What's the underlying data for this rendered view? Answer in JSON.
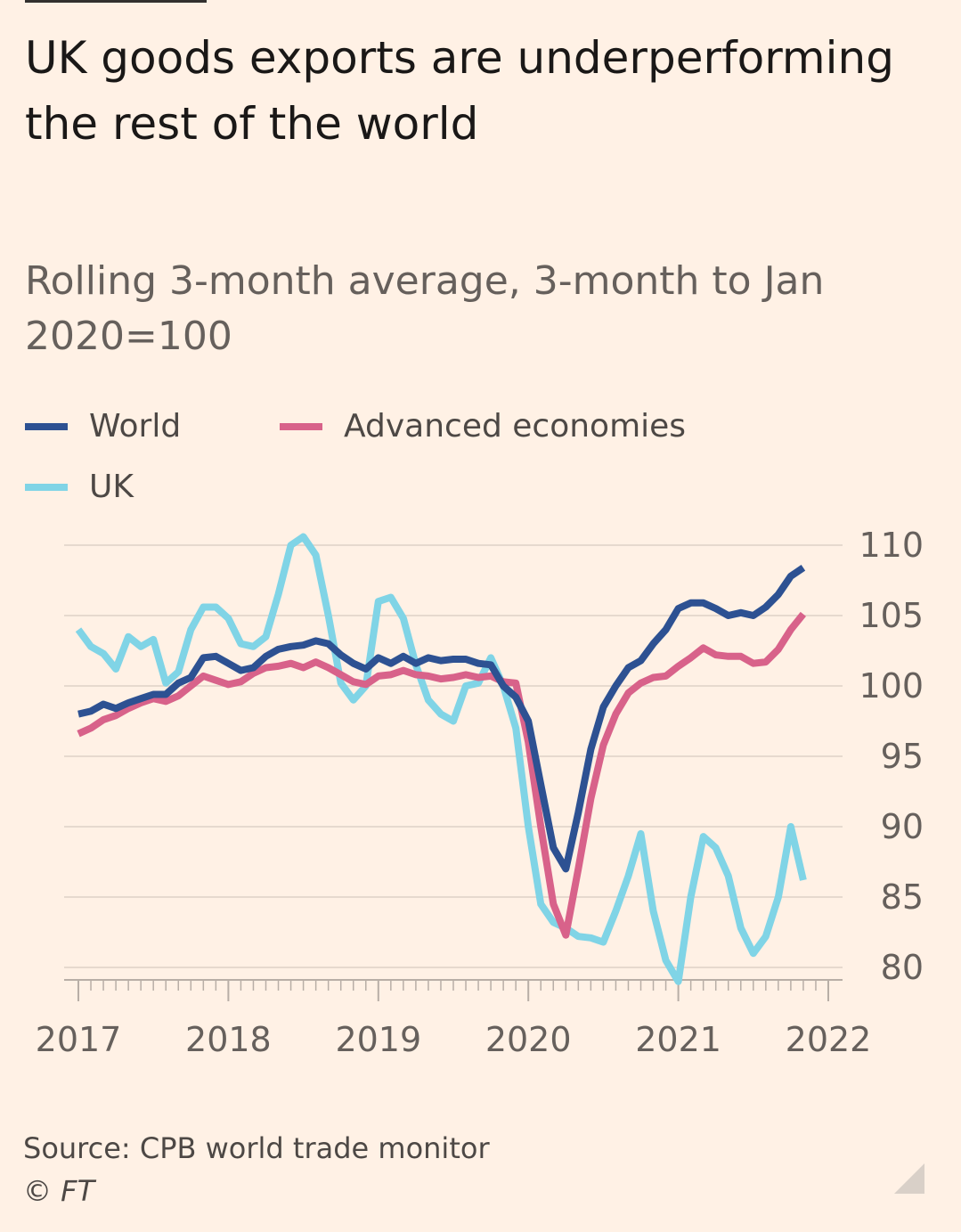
{
  "title": "UK goods exports are underperforming the rest of the world",
  "subtitle": "Rolling 3-month average, 3-month to Jan 2020=100",
  "legend": [
    {
      "label": "World",
      "color": "#2D5192"
    },
    {
      "label": "Advanced economies",
      "color": "#D8628A"
    },
    {
      "label": "UK",
      "color": "#80D4E6"
    }
  ],
  "source": "Source: CPB world trade monitor",
  "credit": "© FT",
  "chart_data": {
    "type": "line",
    "title": "UK goods exports are underperforming the rest of the world",
    "subtitle": "Rolling 3-month average, 3-month to Jan 2020=100",
    "xlabel": "",
    "ylabel": "",
    "ylim": [
      79,
      110
    ],
    "yticks": [
      80,
      85,
      90,
      95,
      100,
      105,
      110
    ],
    "xlim": [
      2017,
      2022
    ],
    "xticks": [
      "2017",
      "2018",
      "2019",
      "2020",
      "2021",
      "2022"
    ],
    "axis_side": "right",
    "grid": true,
    "series": [
      {
        "name": "World",
        "color": "#2D5192",
        "x": [
          2017.0,
          2017.083,
          2017.167,
          2017.25,
          2017.333,
          2017.417,
          2017.5,
          2017.583,
          2017.667,
          2017.75,
          2017.833,
          2017.917,
          2018.0,
          2018.083,
          2018.167,
          2018.25,
          2018.333,
          2018.417,
          2018.5,
          2018.583,
          2018.667,
          2018.75,
          2018.833,
          2018.917,
          2019.0,
          2019.083,
          2019.167,
          2019.25,
          2019.333,
          2019.417,
          2019.5,
          2019.583,
          2019.667,
          2019.75,
          2019.833,
          2019.917,
          2020.0,
          2020.083,
          2020.167,
          2020.25,
          2020.333,
          2020.417,
          2020.5,
          2020.583,
          2020.667,
          2020.75,
          2020.833,
          2020.917,
          2021.0,
          2021.083,
          2021.167,
          2021.25,
          2021.333,
          2021.417,
          2021.5,
          2021.583,
          2021.667,
          2021.75,
          2021.833,
          2021.917,
          2022.0
        ],
        "y": [
          98.0,
          98.2,
          98.7,
          98.4,
          98.8,
          99.1,
          99.4,
          99.4,
          100.2,
          100.6,
          102.0,
          102.1,
          101.6,
          101.1,
          101.3,
          102.1,
          102.6,
          102.8,
          102.9,
          103.2,
          103.0,
          102.2,
          101.6,
          101.2,
          102.0,
          101.6,
          102.1,
          101.6,
          102.0,
          101.8,
          101.9,
          101.9,
          101.6,
          101.5,
          100.0,
          99.2,
          97.5,
          93.0,
          88.5,
          87.0,
          91.0,
          95.5,
          98.5,
          100.0,
          101.3,
          101.8,
          103.0,
          104.0,
          105.5,
          105.9,
          105.9,
          105.5,
          105.0,
          105.2,
          105.0,
          105.6,
          106.5,
          107.8,
          108.4,
          null,
          null
        ]
      },
      {
        "name": "Advanced economies",
        "color": "#D8628A",
        "x": [
          2017.0,
          2017.083,
          2017.167,
          2017.25,
          2017.333,
          2017.417,
          2017.5,
          2017.583,
          2017.667,
          2017.75,
          2017.833,
          2017.917,
          2018.0,
          2018.083,
          2018.167,
          2018.25,
          2018.333,
          2018.417,
          2018.5,
          2018.583,
          2018.667,
          2018.75,
          2018.833,
          2018.917,
          2019.0,
          2019.083,
          2019.167,
          2019.25,
          2019.333,
          2019.417,
          2019.5,
          2019.583,
          2019.667,
          2019.75,
          2019.833,
          2019.917,
          2020.0,
          2020.083,
          2020.167,
          2020.25,
          2020.333,
          2020.417,
          2020.5,
          2020.583,
          2020.667,
          2020.75,
          2020.833,
          2020.917,
          2021.0,
          2021.083,
          2021.167,
          2021.25,
          2021.333,
          2021.417,
          2021.5,
          2021.583,
          2021.667,
          2021.75,
          2021.833,
          2021.917,
          2022.0
        ],
        "y": [
          96.6,
          97.0,
          97.6,
          97.9,
          98.4,
          98.8,
          99.1,
          98.9,
          99.3,
          100.0,
          100.7,
          100.4,
          100.1,
          100.3,
          100.9,
          101.3,
          101.4,
          101.6,
          101.3,
          101.7,
          101.3,
          100.8,
          100.3,
          100.1,
          100.7,
          100.8,
          101.1,
          100.8,
          100.7,
          100.5,
          100.6,
          100.8,
          100.6,
          100.7,
          100.3,
          100.2,
          96.0,
          90.0,
          84.5,
          82.3,
          87.0,
          92.0,
          95.8,
          98.0,
          99.5,
          100.2,
          100.6,
          100.7,
          101.4,
          102.0,
          102.7,
          102.2,
          102.1,
          102.1,
          101.6,
          101.7,
          102.6,
          104.0,
          105.1,
          null,
          null
        ]
      },
      {
        "name": "UK",
        "color": "#80D4E6",
        "x": [
          2017.0,
          2017.083,
          2017.167,
          2017.25,
          2017.333,
          2017.417,
          2017.5,
          2017.583,
          2017.667,
          2017.75,
          2017.833,
          2017.917,
          2018.0,
          2018.083,
          2018.167,
          2018.25,
          2018.333,
          2018.417,
          2018.5,
          2018.583,
          2018.667,
          2018.75,
          2018.833,
          2018.917,
          2019.0,
          2019.083,
          2019.167,
          2019.25,
          2019.333,
          2019.417,
          2019.5,
          2019.583,
          2019.667,
          2019.75,
          2019.833,
          2019.917,
          2020.0,
          2020.083,
          2020.167,
          2020.25,
          2020.333,
          2020.417,
          2020.5,
          2020.583,
          2020.667,
          2020.75,
          2020.833,
          2020.917,
          2021.0,
          2021.083,
          2021.167,
          2021.25,
          2021.333,
          2021.417,
          2021.5,
          2021.583,
          2021.667,
          2021.75,
          2021.833,
          2021.917,
          2022.0
        ],
        "y": [
          104.0,
          102.8,
          102.3,
          101.2,
          103.5,
          102.8,
          103.3,
          100.2,
          101.0,
          104.0,
          105.6,
          105.6,
          104.8,
          103.0,
          102.8,
          103.5,
          106.5,
          110.0,
          110.6,
          109.3,
          105.0,
          100.2,
          99.0,
          100.0,
          106.0,
          106.3,
          104.8,
          101.5,
          99.0,
          98.0,
          97.5,
          100.0,
          100.2,
          102.0,
          100.0,
          97.0,
          90.0,
          84.5,
          83.2,
          82.8,
          82.2,
          82.1,
          81.8,
          84.0,
          86.5,
          89.5,
          84.0,
          80.5,
          79.0,
          85.0,
          89.3,
          88.5,
          86.5,
          82.8,
          81.0,
          82.2,
          85.0,
          90.0,
          86.2,
          null,
          null
        ]
      }
    ]
  }
}
